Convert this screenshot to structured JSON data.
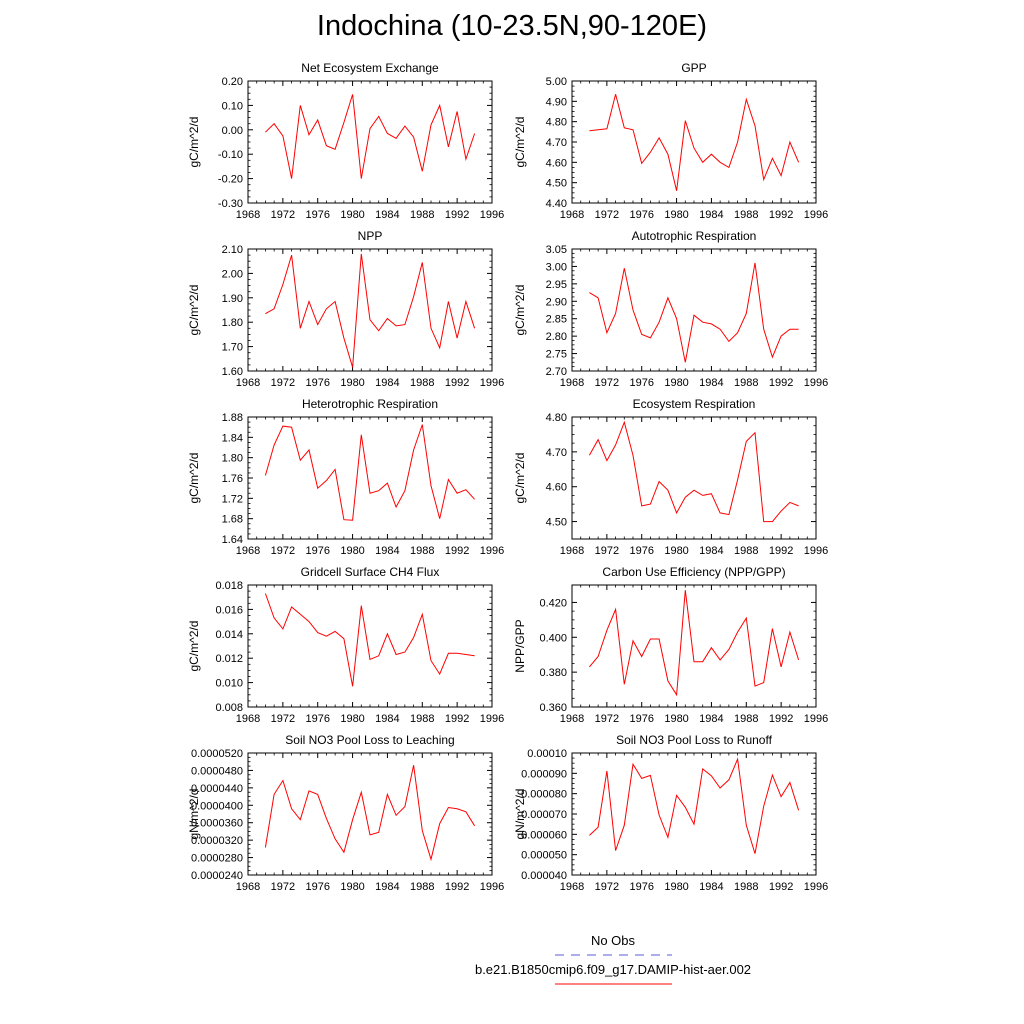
{
  "title": "Indochina (10-23.5N,90-120E)",
  "colors": {
    "model": "#ff0000",
    "obs": "#5b5bd6",
    "axis": "#000000"
  },
  "legend": {
    "obs_label": "No Obs",
    "model_label": "b.e21.B1850cmip6.f09_g17.DAMIP-hist-aer.002"
  },
  "chart_data": [
    {
      "type": "line",
      "title": "Net Ecosystem Exchange",
      "ylabel": "gC/m^2/d",
      "xlim": [
        1968,
        1996
      ],
      "ylim": [
        -0.3,
        0.2
      ],
      "xticks": [
        "1968",
        "1972",
        "1976",
        "1980",
        "1984",
        "1988",
        "1992",
        "1996"
      ],
      "yticks": [
        "-0.30",
        "-0.20",
        "-0.10",
        "0.00",
        "0.10",
        "0.20"
      ],
      "x": [
        1970,
        1971,
        1972,
        1973,
        1974,
        1975,
        1976,
        1977,
        1978,
        1979,
        1980,
        1981,
        1982,
        1983,
        1984,
        1985,
        1986,
        1987,
        1988,
        1989,
        1990,
        1991,
        1992,
        1993,
        1994
      ],
      "series": [
        {
          "values": [
            -0.01,
            0.025,
            -0.025,
            -0.2,
            0.1,
            -0.02,
            0.04,
            -0.065,
            -0.08,
            0.03,
            0.145,
            -0.2,
            0.005,
            0.055,
            -0.015,
            -0.035,
            0.015,
            -0.03,
            -0.17,
            0.02,
            0.1,
            -0.07,
            0.075,
            -0.12,
            -0.015
          ]
        }
      ]
    },
    {
      "type": "line",
      "title": "GPP",
      "ylabel": "gC/m^2/d",
      "xlim": [
        1968,
        1996
      ],
      "ylim": [
        4.4,
        5.0
      ],
      "xticks": [
        "1968",
        "1972",
        "1976",
        "1980",
        "1984",
        "1988",
        "1992",
        "1996"
      ],
      "yticks": [
        "4.40",
        "4.50",
        "4.60",
        "4.70",
        "4.80",
        "4.90",
        "5.00"
      ],
      "x": [
        1970,
        1971,
        1972,
        1973,
        1974,
        1975,
        1976,
        1977,
        1978,
        1979,
        1980,
        1981,
        1982,
        1983,
        1984,
        1985,
        1986,
        1987,
        1988,
        1989,
        1990,
        1991,
        1992,
        1993,
        1994
      ],
      "series": [
        {
          "values": [
            4.755,
            4.76,
            4.765,
            4.935,
            4.77,
            4.76,
            4.595,
            4.65,
            4.72,
            4.64,
            4.46,
            4.805,
            4.67,
            4.6,
            4.64,
            4.6,
            4.575,
            4.7,
            4.91,
            4.78,
            4.515,
            4.62,
            4.535,
            4.7,
            4.6
          ]
        }
      ]
    },
    {
      "type": "line",
      "title": "NPP",
      "ylabel": "gC/m^2/d",
      "xlim": [
        1968,
        1996
      ],
      "ylim": [
        1.6,
        2.1
      ],
      "xticks": [
        "1968",
        "1972",
        "1976",
        "1980",
        "1984",
        "1988",
        "1992",
        "1996"
      ],
      "yticks": [
        "1.60",
        "1.70",
        "1.80",
        "1.90",
        "2.00",
        "2.10"
      ],
      "x": [
        1970,
        1971,
        1972,
        1973,
        1974,
        1975,
        1976,
        1977,
        1978,
        1979,
        1980,
        1981,
        1982,
        1983,
        1984,
        1985,
        1986,
        1987,
        1988,
        1989,
        1990,
        1991,
        1992,
        1993,
        1994
      ],
      "series": [
        {
          "values": [
            1.835,
            1.855,
            1.955,
            2.075,
            1.775,
            1.885,
            1.79,
            1.855,
            1.885,
            1.735,
            1.615,
            2.08,
            1.81,
            1.765,
            1.815,
            1.785,
            1.79,
            1.905,
            2.045,
            1.775,
            1.695,
            1.885,
            1.735,
            1.885,
            1.775
          ]
        }
      ]
    },
    {
      "type": "line",
      "title": "Autotrophic Respiration",
      "ylabel": "gC/m^2/d",
      "xlim": [
        1968,
        1996
      ],
      "ylim": [
        2.7,
        3.05
      ],
      "xticks": [
        "1968",
        "1972",
        "1976",
        "1980",
        "1984",
        "1988",
        "1992",
        "1996"
      ],
      "yticks": [
        "2.70",
        "2.75",
        "2.80",
        "2.85",
        "2.90",
        "2.95",
        "3.00",
        "3.05"
      ],
      "x": [
        1970,
        1971,
        1972,
        1973,
        1974,
        1975,
        1976,
        1977,
        1978,
        1979,
        1980,
        1981,
        1982,
        1983,
        1984,
        1985,
        1986,
        1987,
        1988,
        1989,
        1990,
        1991,
        1992,
        1993,
        1994
      ],
      "series": [
        {
          "values": [
            2.925,
            2.91,
            2.81,
            2.865,
            2.995,
            2.875,
            2.805,
            2.795,
            2.84,
            2.91,
            2.85,
            2.725,
            2.86,
            2.84,
            2.835,
            2.82,
            2.785,
            2.81,
            2.865,
            3.01,
            2.82,
            2.74,
            2.8,
            2.82,
            2.82
          ]
        }
      ]
    },
    {
      "type": "line",
      "title": "Heterotrophic Respiration",
      "ylabel": "gC/m^2/d",
      "xlim": [
        1968,
        1996
      ],
      "ylim": [
        1.64,
        1.88
      ],
      "xticks": [
        "1968",
        "1972",
        "1976",
        "1980",
        "1984",
        "1988",
        "1992",
        "1996"
      ],
      "yticks": [
        "1.64",
        "1.68",
        "1.72",
        "1.76",
        "1.80",
        "1.84",
        "1.88"
      ],
      "x": [
        1970,
        1971,
        1972,
        1973,
        1974,
        1975,
        1976,
        1977,
        1978,
        1979,
        1980,
        1981,
        1982,
        1983,
        1984,
        1985,
        1986,
        1987,
        1988,
        1989,
        1990,
        1991,
        1992,
        1993,
        1994
      ],
      "series": [
        {
          "values": [
            1.765,
            1.825,
            1.862,
            1.86,
            1.795,
            1.815,
            1.74,
            1.755,
            1.777,
            1.678,
            1.677,
            1.845,
            1.73,
            1.735,
            1.75,
            1.703,
            1.735,
            1.815,
            1.865,
            1.745,
            1.68,
            1.757,
            1.73,
            1.737,
            1.718
          ]
        }
      ]
    },
    {
      "type": "line",
      "title": "Ecosystem Respiration",
      "ylabel": "gC/m^2/d",
      "xlim": [
        1968,
        1996
      ],
      "ylim": [
        4.45,
        4.8
      ],
      "xticks": [
        "1968",
        "1972",
        "1976",
        "1980",
        "1984",
        "1988",
        "1992",
        "1996"
      ],
      "yticks": [
        "4.50",
        "4.60",
        "4.70",
        "4.80"
      ],
      "x": [
        1970,
        1971,
        1972,
        1973,
        1974,
        1975,
        1976,
        1977,
        1978,
        1979,
        1980,
        1981,
        1982,
        1983,
        1984,
        1985,
        1986,
        1987,
        1988,
        1989,
        1990,
        1991,
        1992,
        1993,
        1994
      ],
      "series": [
        {
          "values": [
            4.69,
            4.735,
            4.675,
            4.72,
            4.785,
            4.69,
            4.545,
            4.55,
            4.615,
            4.59,
            4.525,
            4.57,
            4.59,
            4.575,
            4.58,
            4.525,
            4.52,
            4.62,
            4.73,
            4.755,
            4.5,
            4.5,
            4.53,
            4.555,
            4.545
          ]
        }
      ]
    },
    {
      "type": "line",
      "title": "Gridcell Surface CH4 Flux",
      "ylabel": "gC/m^2/d",
      "xlim": [
        1968,
        1996
      ],
      "ylim": [
        0.008,
        0.018
      ],
      "xticks": [
        "1968",
        "1972",
        "1976",
        "1980",
        "1984",
        "1988",
        "1992",
        "1996"
      ],
      "yticks": [
        "0.008",
        "0.010",
        "0.012",
        "0.014",
        "0.016",
        "0.018"
      ],
      "x": [
        1970,
        1971,
        1972,
        1973,
        1974,
        1975,
        1976,
        1977,
        1978,
        1979,
        1980,
        1981,
        1982,
        1983,
        1984,
        1985,
        1986,
        1987,
        1988,
        1989,
        1990,
        1991,
        1992,
        1993,
        1994
      ],
      "series": [
        {
          "values": [
            0.0173,
            0.0153,
            0.0144,
            0.0162,
            0.0156,
            0.015,
            0.0141,
            0.0138,
            0.0142,
            0.0136,
            0.0097,
            0.0163,
            0.0119,
            0.0122,
            0.014,
            0.0123,
            0.0125,
            0.0137,
            0.0156,
            0.0118,
            0.0107,
            0.0124,
            0.0124,
            0.0123,
            0.0122
          ]
        }
      ]
    },
    {
      "type": "line",
      "title": "Carbon Use Efficiency (NPP/GPP)",
      "ylabel": "NPP/GPP",
      "xlim": [
        1968,
        1996
      ],
      "ylim": [
        0.36,
        0.43
      ],
      "xticks": [
        "1968",
        "1972",
        "1976",
        "1980",
        "1984",
        "1988",
        "1992",
        "1996"
      ],
      "yticks": [
        "0.360",
        "0.380",
        "0.400",
        "0.420"
      ],
      "x": [
        1970,
        1971,
        1972,
        1973,
        1974,
        1975,
        1976,
        1977,
        1978,
        1979,
        1980,
        1981,
        1982,
        1983,
        1984,
        1985,
        1986,
        1987,
        1988,
        1989,
        1990,
        1991,
        1992,
        1993,
        1994
      ],
      "series": [
        {
          "values": [
            0.383,
            0.389,
            0.404,
            0.416,
            0.373,
            0.398,
            0.389,
            0.399,
            0.399,
            0.375,
            0.367,
            0.427,
            0.386,
            0.386,
            0.394,
            0.387,
            0.393,
            0.403,
            0.411,
            0.372,
            0.374,
            0.405,
            0.383,
            0.403,
            0.387
          ]
        }
      ]
    },
    {
      "type": "line",
      "title": "Soil NO3 Pool Loss to Leaching",
      "ylabel": "gN/m^2/d",
      "xlim": [
        1968,
        1996
      ],
      "ylim": [
        2.4e-05,
        5.2e-05
      ],
      "xticks": [
        "1968",
        "1972",
        "1976",
        "1980",
        "1984",
        "1988",
        "1992",
        "1996"
      ],
      "yticks": [
        "0.0000240",
        "0.0000280",
        "0.0000320",
        "0.0000360",
        "0.0000400",
        "0.0000440",
        "0.0000480",
        "0.0000520"
      ],
      "x": [
        1970,
        1971,
        1972,
        1973,
        1974,
        1975,
        1976,
        1977,
        1978,
        1979,
        1980,
        1981,
        1982,
        1983,
        1984,
        1985,
        1986,
        1987,
        1988,
        1989,
        1990,
        1991,
        1992,
        1993,
        1994
      ],
      "series": [
        {
          "values": [
            3.03e-05,
            4.25e-05,
            4.57e-05,
            3.92e-05,
            3.67e-05,
            4.33e-05,
            4.25e-05,
            3.7e-05,
            3.23e-05,
            2.92e-05,
            3.67e-05,
            4.3e-05,
            3.32e-05,
            3.38e-05,
            4.25e-05,
            3.77e-05,
            3.97e-05,
            4.92e-05,
            3.42e-05,
            2.76e-05,
            3.58e-05,
            3.95e-05,
            3.92e-05,
            3.85e-05,
            3.53e-05
          ]
        }
      ]
    },
    {
      "type": "line",
      "title": "Soil NO3 Pool Loss to Runoff",
      "ylabel": "gN/m^2/d",
      "xlim": [
        1968,
        1996
      ],
      "ylim": [
        4e-05,
        0.0001
      ],
      "xticks": [
        "1968",
        "1972",
        "1976",
        "1980",
        "1984",
        "1988",
        "1992",
        "1996"
      ],
      "yticks": [
        "0.000040",
        "0.000050",
        "0.000060",
        "0.000070",
        "0.000080",
        "0.000090",
        "0.00010"
      ],
      "x": [
        1970,
        1971,
        1972,
        1973,
        1974,
        1975,
        1976,
        1977,
        1978,
        1979,
        1980,
        1981,
        1982,
        1983,
        1984,
        1985,
        1986,
        1987,
        1988,
        1989,
        1990,
        1991,
        1992,
        1993,
        1994
      ],
      "series": [
        {
          "values": [
            5.95e-05,
            6.35e-05,
            9.12e-05,
            5.2e-05,
            6.45e-05,
            9.45e-05,
            8.75e-05,
            8.9e-05,
            6.95e-05,
            5.85e-05,
            7.92e-05,
            7.33e-05,
            6.5e-05,
            9.22e-05,
            8.88e-05,
            8.28e-05,
            8.68e-05,
            9.7e-05,
            6.45e-05,
            5.05e-05,
            7.38e-05,
            8.92e-05,
            7.85e-05,
            8.55e-05,
            7.18e-05
          ]
        }
      ]
    }
  ]
}
